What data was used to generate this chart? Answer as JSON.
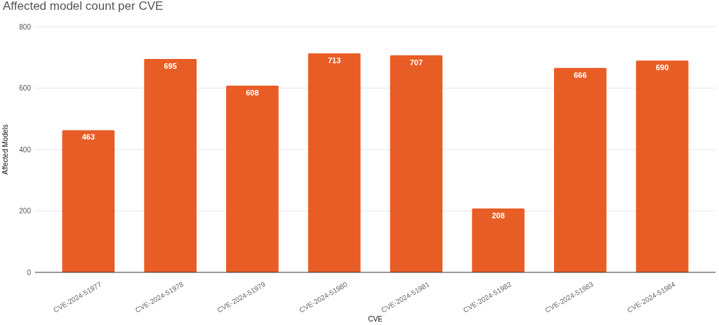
{
  "chart_data": {
    "type": "bar",
    "title": "Affected model count per CVE",
    "xlabel": "CVE",
    "ylabel": "Affected Models",
    "categories": [
      "CVE-2024-51977",
      "CVE-2024-51978",
      "CVE-2024-51979",
      "CVE-2024-51980",
      "CVE-2024-51981",
      "CVE-2024-51982",
      "CVE-2024-51983",
      "CVE-2024-51984"
    ],
    "values": [
      463,
      695,
      608,
      713,
      707,
      208,
      666,
      690
    ],
    "color": "#e85d26",
    "ylim": [
      0,
      800
    ],
    "yticks": [
      0,
      200,
      400,
      600,
      800
    ],
    "grid": "y",
    "data_labels": true,
    "legend": false
  }
}
